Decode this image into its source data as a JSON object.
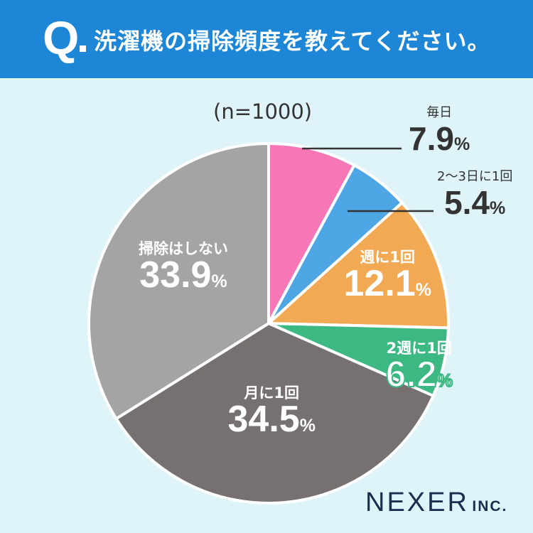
{
  "header": {
    "q_mark": "Q",
    "question": "洗濯機の掃除頻度を教えてください。"
  },
  "sample_size": "(n=1000)",
  "logo": {
    "name": "NEXER",
    "suffix": "INC."
  },
  "colors": {
    "header": "#1d86d6",
    "background": "#dff4f8"
  },
  "chart_data": {
    "type": "pie",
    "title": "洗濯機の掃除頻度を教えてください。",
    "start": "12 o'clock, clockwise",
    "slices": [
      {
        "name": "毎日",
        "value": 7.9,
        "label": "7.9",
        "unit": "%",
        "color": "#f776b5"
      },
      {
        "name": "2〜3日に1回",
        "value": 5.4,
        "label": "5.4",
        "unit": "%",
        "color": "#4fa6e4"
      },
      {
        "name": "週に1回",
        "value": 12.1,
        "label": "12.1",
        "unit": "%",
        "color": "#f2a953"
      },
      {
        "name": "2週に1回",
        "value": 6.2,
        "label": "6.2",
        "unit": "%",
        "color": "#3cb883"
      },
      {
        "name": "月に1回",
        "value": 34.5,
        "label": "34.5",
        "unit": "%",
        "color": "#777071"
      },
      {
        "name": "掃除はしない",
        "value": 33.9,
        "label": "33.9",
        "unit": "%",
        "color": "#a4a4a4"
      }
    ]
  }
}
